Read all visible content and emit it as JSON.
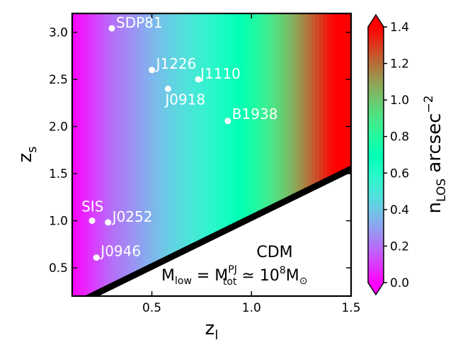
{
  "chart_data": {
    "type": "heatmap",
    "xlabel": "z",
    "xlabel_sub": "l",
    "ylabel": "z",
    "ylabel_sub": "s",
    "xlim": [
      0.1,
      1.5
    ],
    "ylim": [
      0.2,
      3.2
    ],
    "x_ticks": [
      0.5,
      1.0,
      1.5
    ],
    "x_tick_labels": [
      "0.5",
      "1.0",
      "1.5"
    ],
    "y_ticks": [
      0.5,
      1.0,
      1.5,
      2.0,
      2.5,
      3.0
    ],
    "y_tick_labels": [
      "0.5",
      "1.0",
      "1.5",
      "2.0",
      "2.5",
      "3.0"
    ],
    "colorbar": {
      "label": "n",
      "label_sub": "LOS",
      "label_unit": "arcsec",
      "label_unit_sup": "−2",
      "range": [
        0.0,
        1.4
      ],
      "ticks": [
        0.0,
        0.2,
        0.4,
        0.6,
        0.8,
        1.0,
        1.2,
        1.4
      ],
      "tick_labels": [
        "0.0",
        "0.2",
        "0.4",
        "0.6",
        "0.8",
        "1.0",
        "1.2",
        "1.4"
      ],
      "colormap": "rainbow",
      "extend": "both"
    },
    "field_by_zl": {
      "zl": [
        0.1,
        0.2,
        0.3,
        0.4,
        0.5,
        0.6,
        0.7,
        0.8,
        0.9,
        1.0,
        1.1,
        1.2,
        1.3,
        1.4,
        1.5
      ],
      "n_los": [
        0.0,
        0.1,
        0.2,
        0.27,
        0.35,
        0.43,
        0.5,
        0.58,
        0.66,
        0.76,
        0.9,
        1.05,
        1.22,
        1.38,
        1.45
      ]
    },
    "boundary_line": {
      "x": [
        0.1,
        1.5
      ],
      "y": [
        0.1,
        1.55
      ],
      "color": "#000000"
    },
    "lenses": [
      {
        "name": "SDP81",
        "zl": 0.299,
        "zs": 3.042
      },
      {
        "name": "J1226",
        "zl": 0.5,
        "zs": 2.6
      },
      {
        "name": "J1110",
        "zl": 0.733,
        "zs": 2.5
      },
      {
        "name": "J0918",
        "zl": 0.581,
        "zs": 2.4
      },
      {
        "name": "B1938",
        "zl": 0.881,
        "zs": 2.059
      },
      {
        "name": "SIS",
        "zl": 0.2,
        "zs": 1.0
      },
      {
        "name": "J0252",
        "zl": 0.28,
        "zs": 0.982
      },
      {
        "name": "J0946",
        "zl": 0.222,
        "zs": 0.609
      }
    ],
    "annotations": {
      "title_line": "CDM",
      "mass_prefix": "M",
      "mass_sub": "low",
      "mass_equals": " = M",
      "mass_sup": "PJ",
      "mass_sub2": "tot",
      "mass_approx": " ≃ 10",
      "mass_exp": "8",
      "mass_unit": "M",
      "mass_unit_symbol": "⊙"
    }
  }
}
